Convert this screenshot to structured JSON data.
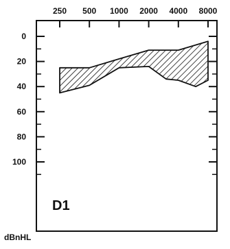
{
  "chart_data": {
    "type": "area",
    "title": "",
    "panel_label": "D1",
    "xlabel": "",
    "ylabel": "dBnHL",
    "x_scale": "log",
    "x_ticks": [
      250,
      500,
      1000,
      2000,
      4000,
      8000
    ],
    "x_tick_labels": [
      "250",
      "500",
      "1000",
      "2000",
      "4000",
      "8000"
    ],
    "y_ticks": [
      0,
      20,
      40,
      60,
      80,
      100
    ],
    "y_tick_labels": [
      "0",
      "20",
      "40",
      "60",
      "80",
      "100"
    ],
    "y_inverted": true,
    "ylim": [
      -6,
      120
    ],
    "x_axis_position": "top",
    "grid": false,
    "fill_pattern": "diagonal-hatch",
    "series": [
      {
        "role": "upper-boundary",
        "x": [
          250,
          500,
          1000,
          2000,
          4000,
          8000
        ],
        "values": [
          25,
          25,
          18,
          11,
          11,
          4
        ]
      },
      {
        "role": "lower-boundary",
        "x": [
          250,
          500,
          1000,
          2000,
          3000,
          4000,
          6000,
          8000
        ],
        "values": [
          45,
          39,
          25,
          24,
          34,
          35,
          40,
          35
        ]
      }
    ]
  }
}
